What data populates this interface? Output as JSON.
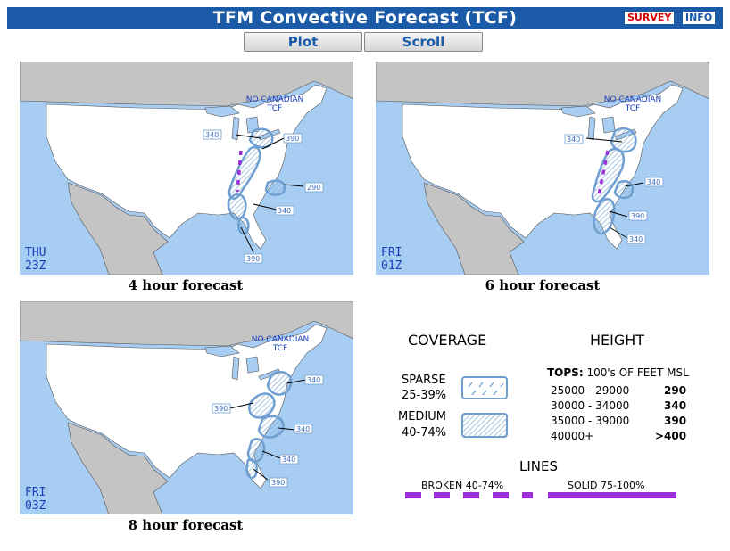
{
  "header": {
    "title": "TFM Convective Forecast (TCF)",
    "survey_label": "SURVEY",
    "info_label": "INFO",
    "plot_label": "Plot",
    "scroll_label": "Scroll"
  },
  "maps": [
    {
      "caption": "4 hour forecast",
      "day": "THU",
      "time": "23Z",
      "note": [
        "NO CANADIAN",
        "TCF"
      ],
      "tops": [
        "340",
        "390",
        "290",
        "340",
        "390"
      ]
    },
    {
      "caption": "6 hour forecast",
      "day": "FRI",
      "time": "01Z",
      "note": [
        "NO CANADIAN",
        "TCF"
      ],
      "tops": [
        "340",
        "340",
        "390",
        "340"
      ]
    },
    {
      "caption": "8 hour forecast",
      "day": "FRI",
      "time": "03Z",
      "note": [
        "NO CANADIAN",
        "TCF"
      ],
      "tops": [
        "340",
        "390",
        "340",
        "340",
        "390"
      ]
    }
  ],
  "legend": {
    "coverage_title": "COVERAGE",
    "height_title": "HEIGHT",
    "sparse_label": "SPARSE",
    "sparse_range": "25-39%",
    "medium_label": "MEDIUM",
    "medium_range": "40-74%",
    "tops_label": "TOPS:",
    "tops_units": "100's OF FEET MSL",
    "height_rows": [
      {
        "range": "25000 - 29000",
        "code": "290"
      },
      {
        "range": "30000 - 34000",
        "code": "340"
      },
      {
        "range": "35000 - 39000",
        "code": "390"
      },
      {
        "range": "40000+",
        "code": ">400"
      }
    ],
    "lines_title": "LINES",
    "broken_label": "BROKEN 40-74%",
    "solid_label": "SOLID 75-100%"
  },
  "colors": {
    "header_bg": "#1b5aa6",
    "ocean": "#a8cdf2",
    "land_foreign": "#c4c4c4",
    "land_us": "#ffffff",
    "forecast_area": "#6f9fd0",
    "line_purple": "#9b30d9",
    "survey": "#d40000"
  }
}
